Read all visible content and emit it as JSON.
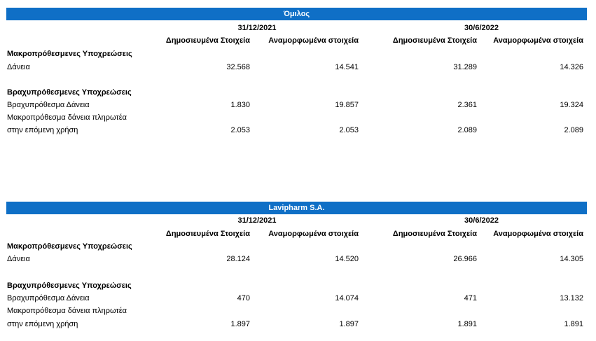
{
  "tables": [
    {
      "title": "Όμιλος",
      "periods": [
        "31/12/2021",
        "30/6/2022"
      ],
      "columns": [
        "Δημοσιευμένα Στοιχεία",
        "Αναμορφωμένα στοιχεία",
        "Δημοσιευμένα Στοιχεία",
        "Αναμορφωμένα στοιχεία"
      ],
      "section1": "Μακροπρόθεσμενες Υποχρεώσεις",
      "row1": {
        "label": "Δάνεια",
        "values": [
          "32.568",
          "14.541",
          "31.289",
          "14.326"
        ]
      },
      "section2": "Βραχυπρόθεσμενες Υποχρεώσεις",
      "row2": {
        "label": "Βραχυπρόθεσμα Δάνεια",
        "values": [
          "1.830",
          "19.857",
          "2.361",
          "19.324"
        ]
      },
      "row3": {
        "label_line1": "Μακροπρόθεσμα δάνεια πληρωτέα",
        "label_line2": "στην επόμενη χρήση",
        "values": [
          "2.053",
          "2.053",
          "2.089",
          "2.089"
        ]
      }
    },
    {
      "title": "Lavipharm S.A.",
      "periods": [
        "31/12/2021",
        "30/6/2022"
      ],
      "columns": [
        "Δημοσιευμένα Στοιχεία",
        "Αναμορφωμένα στοιχεία",
        "Δημοσιευμένα Στοιχεία",
        "Αναμορφωμένα στοιχεία"
      ],
      "section1": "Μακροπρόθεσμενες Υποχρεώσεις",
      "row1": {
        "label": "Δάνεια",
        "values": [
          "28.124",
          "14.520",
          "26.966",
          "14.305"
        ]
      },
      "section2": "Βραχυπρόθεσμενες Υποχρεώσεις",
      "row2": {
        "label": "Βραχυπρόθεσμα Δάνεια",
        "values": [
          "470",
          "14.074",
          "471",
          "13.132"
        ]
      },
      "row3": {
        "label_line1": "Μακροπρόθεσμα δάνεια πληρωτέα",
        "label_line2": "στην επόμενη χρήση",
        "values": [
          "1.897",
          "1.897",
          "1.891",
          "1.891"
        ]
      }
    }
  ]
}
